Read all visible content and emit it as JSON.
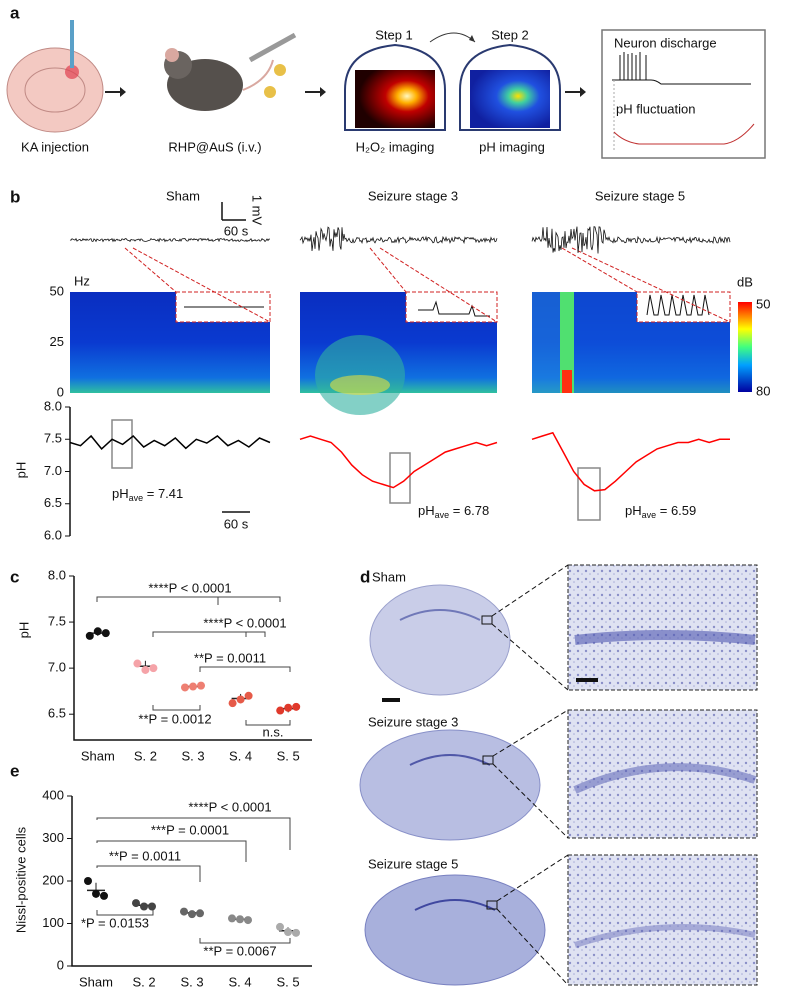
{
  "panel_labels": {
    "a": "a",
    "b": "b",
    "c": "c",
    "d": "d",
    "e": "e"
  },
  "panel_a": {
    "injection": "KA injection",
    "probe": "RHP@AuS (i.v.)",
    "step1": "Step 1",
    "step2": "Step 2",
    "h2o2": "H₂O₂ imaging",
    "ph": "pH imaging",
    "discharge": "Neuron discharge",
    "fluctuation": "pH fluctuation"
  },
  "panel_b": {
    "scale_v": "1 mV",
    "scale_t": "60 s",
    "hz": "Hz",
    "freq_ticks": [
      50,
      25,
      0
    ],
    "freq_range": [
      0,
      50
    ],
    "db": "dB",
    "db_ticks": [
      50,
      80
    ],
    "time_scale": "60 s",
    "ph_ave": [
      {
        "label": "pH",
        "sub": "ave",
        "text": " = 7.41"
      },
      {
        "label": "pH",
        "sub": "ave",
        "text": " = 6.78"
      },
      {
        "label": "pH",
        "sub": "ave",
        "text": " = 6.59"
      }
    ]
  },
  "panel_d": {
    "titles": [
      "Sham",
      "Seizure stage 3",
      "Seizure stage 5"
    ]
  },
  "chart_data": [
    {
      "type": "line",
      "y_label": "pH",
      "ylim": [
        6.0,
        8.0
      ],
      "yticks": [
        {
          "value": 8,
          "label": "8.0"
        },
        {
          "value": 7.5,
          "label": "7.5"
        },
        {
          "value": 7,
          "label": "7.0"
        },
        {
          "value": 6.5,
          "label": "6.5"
        },
        {
          "value": 6,
          "label": "6.0"
        }
      ],
      "series": [
        {
          "name": "Sham",
          "color": "#000000",
          "values": [
            7.45,
            7.4,
            7.55,
            7.35,
            7.5,
            7.42,
            7.55,
            7.38,
            7.48,
            7.4,
            7.52,
            7.36,
            7.5,
            7.44,
            7.55,
            7.4,
            7.48,
            7.38,
            7.52,
            7.45
          ]
        },
        {
          "name": "Seizure stage 3",
          "color": "#ff0000",
          "values": [
            7.5,
            7.55,
            7.5,
            7.45,
            7.3,
            7.1,
            6.95,
            6.85,
            6.8,
            6.75,
            6.85,
            7.0,
            7.1,
            7.2,
            7.3,
            7.35,
            7.4,
            7.45,
            7.4,
            7.45
          ]
        },
        {
          "name": "Seizure stage 5",
          "color": "#ff0000",
          "values": [
            7.5,
            7.55,
            7.6,
            7.3,
            7.0,
            6.8,
            6.7,
            6.72,
            6.85,
            7.0,
            7.15,
            7.25,
            7.35,
            7.4,
            7.45,
            7.45,
            7.5,
            7.45,
            7.5,
            7.5
          ]
        }
      ]
    },
    {
      "type": "dot",
      "y_label": "pH",
      "categories": [
        "Sham",
        "S. 2",
        "S. 3",
        "S. 4",
        "S. 5"
      ],
      "ylim": [
        6.22,
        8.0
      ],
      "yticks": [
        {
          "value": 6.5,
          "label": "6.5"
        },
        {
          "value": 7,
          "label": "7.0"
        },
        {
          "value": 7.5,
          "label": "7.5"
        },
        {
          "value": 8,
          "label": "8.0"
        }
      ],
      "colors": [
        "#111111",
        "#f5a3a8",
        "#ee7f72",
        "#e65a48",
        "#e0392b"
      ],
      "values": [
        [
          7.35,
          7.4,
          7.38
        ],
        [
          7.05,
          6.98,
          7.0
        ],
        [
          6.79,
          6.8,
          6.81
        ],
        [
          6.62,
          6.66,
          6.7
        ],
        [
          6.54,
          6.57,
          6.58
        ]
      ],
      "means": [
        7.38,
        7.02,
        6.8,
        6.67,
        6.56
      ],
      "sd": [
        0.03,
        0.06,
        0.02,
        0.05,
        0.04
      ],
      "annotations": [
        "****P < 0.0001",
        "****P < 0.0001",
        "**P = 0.0011",
        "**P = 0.0012",
        "n.s."
      ]
    },
    {
      "type": "dot",
      "y_label": "Nissl-positive cells",
      "categories": [
        "Sham",
        "S. 2",
        "S. 3",
        "S. 4",
        "S. 5"
      ],
      "ylim": [
        0,
        400
      ],
      "yticks": [
        0,
        100,
        200,
        300,
        400
      ],
      "colors": [
        "#111111",
        "#444444",
        "#666666",
        "#888888",
        "#aaaaaa"
      ],
      "values": [
        [
          200,
          170,
          165
        ],
        [
          148,
          140,
          140
        ],
        [
          128,
          122,
          124
        ],
        [
          112,
          110,
          108
        ],
        [
          92,
          80,
          78
        ]
      ],
      "means": [
        178,
        143,
        125,
        110,
        83
      ],
      "sd": [
        18,
        5,
        3,
        2,
        8
      ],
      "annotations": [
        "****P < 0.0001",
        "***P = 0.0001",
        "**P = 0.0011",
        "*P = 0.0153",
        "**P = 0.0067"
      ]
    }
  ]
}
